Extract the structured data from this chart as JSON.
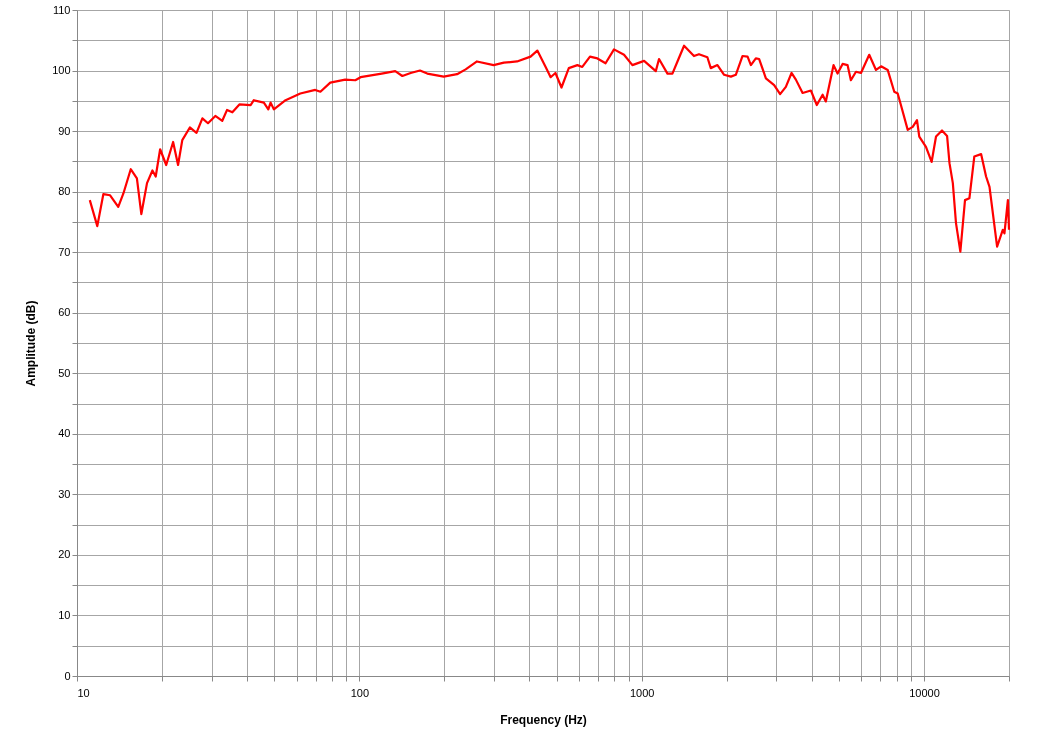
{
  "chart_data": {
    "type": "line",
    "xlabel": "Frequency (Hz)",
    "ylabel": "Amplitude (dB)",
    "x": [
      11.1,
      11.8,
      12.4,
      13.1,
      14.0,
      14.6,
      15.5,
      16.3,
      16.9,
      17.7,
      18.5,
      19.0,
      19.7,
      20.7,
      21.9,
      22.8,
      23.6,
      25.1,
      26.5,
      27.8,
      29.1,
      30.9,
      32.7,
      34.0,
      35.5,
      37.6,
      41.2,
      42.3,
      45.9,
      47.6,
      48.5,
      49.8,
      54.8,
      61.8,
      69.8,
      72.8,
      78.9,
      89.1,
      96.8,
      101,
      120,
      134,
      142,
      152,
      164,
      174,
      199,
      222,
      238,
      261,
      299,
      325,
      362,
      404,
      427,
      457,
      476,
      495,
      520,
      552,
      592,
      616,
      656,
      697,
      745,
      798,
      866,
      927,
      1020,
      1122,
      1152,
      1234,
      1285,
      1339,
      1413,
      1532,
      1596,
      1709,
      1757,
      1855,
      1959,
      2070,
      2155,
      2275,
      2372,
      2437,
      2537,
      2607,
      2754,
      2946,
      3093,
      3241,
      3395,
      3517,
      3715,
      3975,
      4172,
      4374,
      4490,
      4783,
      4942,
      5148,
      5360,
      5508,
      5741,
      5981,
      6397,
      6760,
      7047,
      7436,
      7846,
      8069,
      8283,
      8756,
      9120,
      9444,
      9621,
      10160,
      10640,
      11030,
      11580,
      12070,
      12310,
      12650,
      12980,
      13450,
      13970,
      14480,
      15070,
      15930,
      16590,
      17060,
      18150,
      19010,
      19270,
      19820,
      20000
    ],
    "series": [
      {
        "color": "#ff0000",
        "values": [
          78.6,
          74.3,
          79.6,
          79.4,
          77.5,
          79.7,
          83.7,
          82.2,
          76.3,
          81.4,
          83.5,
          82.5,
          87.0,
          84.4,
          88.2,
          84.4,
          88.5,
          90.6,
          89.7,
          92.1,
          91.3,
          92.5,
          91.7,
          93.5,
          93.1,
          94.4,
          94.3,
          95.1,
          94.7,
          93.6,
          94.7,
          93.6,
          95.1,
          96.2,
          96.8,
          96.5,
          98.0,
          98.5,
          98.4,
          98.9,
          99.5,
          99.9,
          99.1,
          99.6,
          100.0,
          99.5,
          99.0,
          99.4,
          100.2,
          101.5,
          100.9,
          101.3,
          101.5,
          102.3,
          103.3,
          100.6,
          98.9,
          99.6,
          97.2,
          100.4,
          100.9,
          100.6,
          102.3,
          102.0,
          101.2,
          103.5,
          102.6,
          100.9,
          101.6,
          99.9,
          101.9,
          99.5,
          99.5,
          101.5,
          104.1,
          102.4,
          102.7,
          102.2,
          100.4,
          100.9,
          99.3,
          99.0,
          99.3,
          102.4,
          102.3,
          100.9,
          102.0,
          101.9,
          98.7,
          97.6,
          96.1,
          97.3,
          99.6,
          98.5,
          96.3,
          96.7,
          94.3,
          96.0,
          94.9,
          100.9,
          99.5,
          101.1,
          100.9,
          98.4,
          99.8,
          99.6,
          102.6,
          100.1,
          100.7,
          100.1,
          96.5,
          96.2,
          94.3,
          90.2,
          90.7,
          91.8,
          89.1,
          87.4,
          84.9,
          89.1,
          90.1,
          89.2,
          84.7,
          81.4,
          74.8,
          70.1,
          78.6,
          78.9,
          85.8,
          86.2,
          82.5,
          80.8,
          70.9,
          73.7,
          73.1,
          78.6,
          73.7
        ]
      }
    ],
    "log": "x",
    "grid": true,
    "marker": "none",
    "line_style": "solid",
    "xlim": [
      10,
      20000
    ],
    "xticks": [
      10,
      {
        "value": 20,
        "label": null
      },
      {
        "value": 30,
        "label": null
      },
      {
        "value": 40,
        "label": null
      },
      {
        "value": 50,
        "label": null
      },
      {
        "value": 60,
        "label": null
      },
      {
        "value": 70,
        "label": null
      },
      {
        "value": 80,
        "label": null
      },
      {
        "value": 90,
        "label": null
      },
      100,
      {
        "value": 200,
        "label": null
      },
      {
        "value": 300,
        "label": null
      },
      {
        "value": 400,
        "label": null
      },
      {
        "value": 500,
        "label": null
      },
      {
        "value": 600,
        "label": null
      },
      {
        "value": 700,
        "label": null
      },
      {
        "value": 800,
        "label": null
      },
      {
        "value": 900,
        "label": null
      },
      1000,
      {
        "value": 2000,
        "label": null
      },
      {
        "value": 3000,
        "label": null
      },
      {
        "value": 4000,
        "label": null
      },
      {
        "value": 5000,
        "label": null
      },
      {
        "value": 6000,
        "label": null
      },
      {
        "value": 7000,
        "label": null
      },
      {
        "value": 8000,
        "label": null
      },
      {
        "value": 9000,
        "label": null
      },
      10000,
      {
        "value": 20000,
        "label": null
      }
    ],
    "ylim": [
      0,
      110
    ],
    "yticks": [
      0,
      {
        "value": 5,
        "label": null
      },
      10,
      {
        "value": 15,
        "label": null
      },
      20,
      {
        "value": 25,
        "label": null
      },
      30,
      {
        "value": 35,
        "label": null
      },
      40,
      {
        "value": 45,
        "label": null
      },
      50,
      {
        "value": 55,
        "label": null
      },
      60,
      {
        "value": 65,
        "label": null
      },
      70,
      {
        "value": 75,
        "label": null
      },
      80,
      {
        "value": 85,
        "label": null
      },
      90,
      {
        "value": 95,
        "label": null
      },
      100,
      {
        "value": 105,
        "label": null
      },
      110
    ]
  }
}
